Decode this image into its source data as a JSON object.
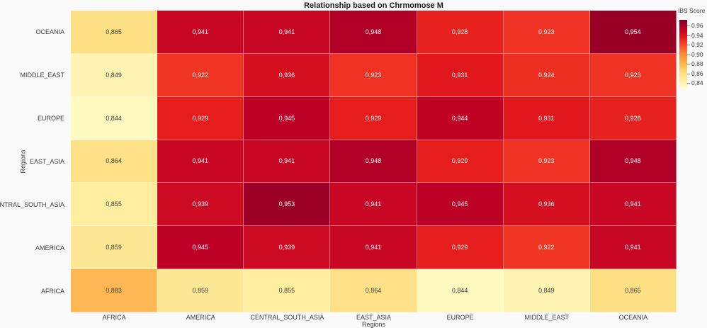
{
  "title": "Relationship based on Chrmomose M",
  "axes": {
    "x_label": "Regions",
    "y_label": "Regions"
  },
  "legend": {
    "title": "IBS Score",
    "tick_labels": [
      "0,96",
      "0,94",
      "0,92",
      "0,90",
      "0,88",
      "0,86",
      "0,84"
    ]
  },
  "chart_data": {
    "type": "heatmap",
    "title": "Relationship based on Chrmomose M",
    "xlabel": "Regions",
    "ylabel": "Regions",
    "x_categories": [
      "AFRICA",
      "AMERICA",
      "CENTRAL_SOUTH_ASIA",
      "EAST_ASIA",
      "EUROPE",
      "MIDDLE_EAST",
      "OCEANIA"
    ],
    "y_categories_top_to_bottom": [
      "OCEANIA",
      "MIDDLE_EAST",
      "EUROPE",
      "EAST_ASIA",
      "CENTRAL_SOUTH_ASIA",
      "AMERICA",
      "AFRICA"
    ],
    "values_by_row": [
      [
        0.865,
        0.941,
        0.941,
        0.948,
        0.928,
        0.923,
        0.954
      ],
      [
        0.849,
        0.922,
        0.936,
        0.923,
        0.931,
        0.924,
        0.923
      ],
      [
        0.844,
        0.929,
        0.945,
        0.929,
        0.944,
        0.931,
        0.928
      ],
      [
        0.864,
        0.941,
        0.941,
        0.948,
        0.929,
        0.923,
        0.948
      ],
      [
        0.855,
        0.939,
        0.953,
        0.941,
        0.945,
        0.936,
        0.941
      ],
      [
        0.859,
        0.945,
        0.939,
        0.941,
        0.929,
        0.922,
        0.941
      ],
      [
        0.883,
        0.859,
        0.855,
        0.864,
        0.844,
        0.849,
        0.865
      ]
    ],
    "value_decimal_separator": ",",
    "value_decimals": 3,
    "color_scale": {
      "name": "YlOrRd",
      "domain": [
        0.84,
        0.96
      ],
      "anchors": [
        "#ffffcc",
        "#ffeda0",
        "#fed976",
        "#feb24c",
        "#fd8d3c",
        "#fc4e2a",
        "#e31a1c",
        "#bd0026",
        "#800026"
      ]
    },
    "colorbar": {
      "title": "IBS Score",
      "ticks": [
        0.96,
        0.94,
        0.92,
        0.9,
        0.88,
        0.86,
        0.84
      ],
      "position": "top-right"
    },
    "legend_position": "top-right",
    "grid": false
  },
  "colors": {
    "background": "#fafafa",
    "title_text": "#1a1a1a",
    "axis_text": "#3c3c3c",
    "cell_text_dark": "#3c3c3c",
    "cell_text_light": "#ffffff"
  }
}
